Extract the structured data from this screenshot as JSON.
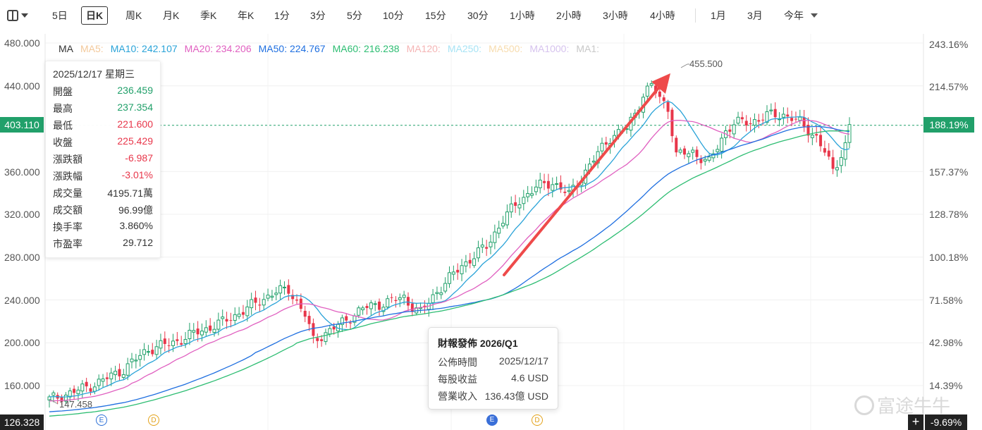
{
  "toolbar": {
    "periods": [
      "5日",
      "日K",
      "周K",
      "月K",
      "季K",
      "年K",
      "1分",
      "3分",
      "5分",
      "10分",
      "15分",
      "30分",
      "1小時",
      "2小時",
      "3小時",
      "4小時",
      "1月",
      "3月"
    ],
    "active": "日K",
    "ytd_label": "今年"
  },
  "ma_legend": {
    "ma": "MA",
    "ma5": "MA5:",
    "ma10": "MA10: 242.107",
    "ma20": "MA20: 234.206",
    "ma50": "MA50: 224.767",
    "ma60": "MA60: 216.238",
    "ma120": "MA120:",
    "ma250": "MA250:",
    "ma500": "MA500:",
    "ma1000": "MA1000:",
    "ma1": "MA1:"
  },
  "y_axis_left": [
    "480.000",
    "440.000",
    "400.000",
    "360.000",
    "320.000",
    "280.000",
    "240.000",
    "200.000",
    "160.000"
  ],
  "y_axis_right": [
    "243.16%",
    "214.57%",
    "188.19%",
    "157.37%",
    "128.78%",
    "100.18%",
    "71.58%",
    "42.98%",
    "14.39%"
  ],
  "current_price": "403.110",
  "current_pct": "188.19%",
  "bottom_left_value": "126.328",
  "bottom_right_value": "-9.69%",
  "plus_label": "+",
  "info": {
    "date": "2025/12/17 星期三",
    "rows": [
      {
        "label": "開盤",
        "value": "236.459",
        "color": "#21a06a"
      },
      {
        "label": "最高",
        "value": "237.354",
        "color": "#21a06a"
      },
      {
        "label": "最低",
        "value": "221.600",
        "color": "#e8364a"
      },
      {
        "label": "收盤",
        "value": "225.429",
        "color": "#e8364a"
      },
      {
        "label": "漲跌額",
        "value": "-6.987",
        "color": "#e8364a"
      },
      {
        "label": "漲跌幅",
        "value": "-3.01%",
        "color": "#e8364a"
      },
      {
        "label": "成交量",
        "value": "4195.71萬",
        "color": "#333333"
      },
      {
        "label": "成交額",
        "value": "96.99億",
        "color": "#333333"
      },
      {
        "label": "換手率",
        "value": "3.860%",
        "color": "#333333"
      },
      {
        "label": "市盈率",
        "value": "29.712",
        "color": "#333333"
      }
    ]
  },
  "earnings": {
    "title": "財報發佈 2026/Q1",
    "rows": [
      {
        "label": "公佈時間",
        "value": "2025/12/17"
      },
      {
        "label": "每股收益",
        "value": "4.6 USD"
      },
      {
        "label": "營業收入",
        "value": "136.43億 USD"
      }
    ]
  },
  "peak_label": "455.500",
  "low_label": "147.458",
  "markers": {
    "e": "E",
    "d": "D"
  },
  "watermark": "富途牛牛",
  "colors": {
    "up": "#21a06a",
    "down": "#e8364a",
    "ma10": "#2aa3d8",
    "ma20": "#e060c0",
    "ma50": "#1f6fe0",
    "ma60": "#2dbd72"
  }
}
